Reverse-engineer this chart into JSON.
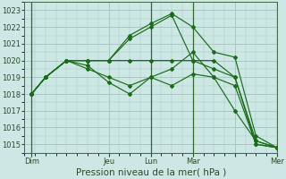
{
  "title": "Pression niveau de la mer( hPa )",
  "background_color": "#cde8e4",
  "grid_color": "#a8c8c4",
  "line_color": "#1a6b1a",
  "day_line_color": "#336633",
  "xlim": [
    0,
    144
  ],
  "ylim": [
    1014.5,
    1023.5
  ],
  "yticks": [
    1015,
    1016,
    1017,
    1018,
    1019,
    1020,
    1021,
    1022,
    1023
  ],
  "xtick_positions": [
    4,
    48,
    72,
    96,
    120,
    144
  ],
  "xtick_labels": [
    "Dim",
    "Jeu",
    "Lun",
    "Mar",
    "",
    "Mer"
  ],
  "day_lines": [
    4,
    72,
    96,
    144
  ],
  "series": [
    {
      "x": [
        4,
        12,
        24,
        36,
        48,
        60,
        72,
        84,
        96,
        108,
        120,
        132,
        144
      ],
      "y": [
        1018.0,
        1019.0,
        1020.0,
        1020.0,
        1020.0,
        1020.0,
        1020.0,
        1020.0,
        1020.0,
        1020.0,
        1019.0,
        1015.0,
        1014.8
      ]
    },
    {
      "x": [
        4,
        12,
        24,
        36,
        48,
        60,
        72,
        84,
        96,
        108,
        120,
        132,
        144
      ],
      "y": [
        1018.0,
        1019.0,
        1020.0,
        1020.0,
        1020.0,
        1021.3,
        1022.0,
        1022.7,
        1020.0,
        1019.5,
        1019.0,
        1015.2,
        1014.8
      ]
    },
    {
      "x": [
        4,
        12,
        24,
        36,
        48,
        60,
        72,
        84,
        96,
        108,
        120,
        132,
        144
      ],
      "y": [
        1018.0,
        1019.0,
        1020.0,
        1020.0,
        1020.0,
        1021.5,
        1022.2,
        1022.8,
        1022.0,
        1020.5,
        1020.2,
        1015.5,
        1014.8
      ]
    },
    {
      "x": [
        4,
        12,
        24,
        36,
        48,
        60,
        72,
        84,
        96,
        108,
        120,
        132,
        144
      ],
      "y": [
        1018.0,
        1019.0,
        1020.0,
        1019.7,
        1018.7,
        1018.0,
        1019.0,
        1018.5,
        1019.2,
        1019.0,
        1018.5,
        1015.0,
        1014.8
      ]
    },
    {
      "x": [
        4,
        12,
        24,
        36,
        48,
        60,
        72,
        84,
        96,
        108,
        120,
        132,
        144
      ],
      "y": [
        1018.0,
        1019.0,
        1020.0,
        1019.5,
        1019.0,
        1018.5,
        1019.0,
        1019.5,
        1020.5,
        1019.0,
        1017.0,
        1015.2,
        1014.8
      ]
    }
  ]
}
